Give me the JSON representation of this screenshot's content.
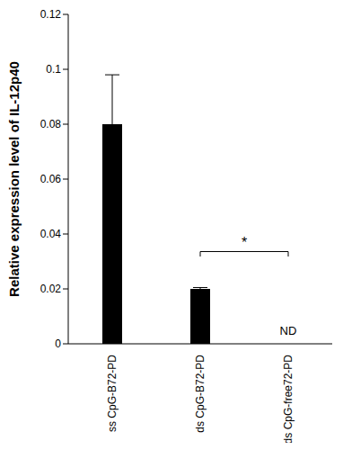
{
  "chart_data": {
    "type": "bar",
    "categories": [
      "ss CpG-B72-PD",
      "ds CpG-B72-PD",
      "ds CpG-free72-PD"
    ],
    "values": [
      0.08,
      0.02,
      null
    ],
    "errors": [
      0.018,
      0.0005,
      null
    ],
    "color": "#000000",
    "y_label": "Relative expression level of IL-12p40",
    "ylim": [
      0,
      0.12
    ],
    "yticks": [
      0,
      0.02,
      0.04,
      0.06,
      0.08,
      0.1,
      0.12
    ],
    "grid": false,
    "annotations": [
      {
        "text": "*",
        "from": "ds CpG-B72-PD",
        "to": "ds CpG-free72-PD"
      },
      {
        "text": "ND",
        "category": "ds CpG-free72-PD"
      }
    ]
  }
}
